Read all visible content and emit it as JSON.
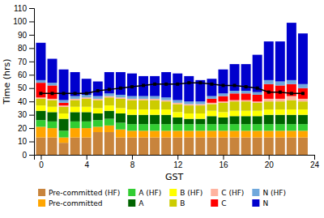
{
  "chart_data": {
    "type": "bar",
    "stacked": true,
    "grid": false,
    "legend": "bottom",
    "xlabel": "GST",
    "ylabel": "Time (hrs)",
    "x": [
      0,
      1,
      2,
      3,
      4,
      5,
      6,
      7,
      8,
      9,
      10,
      11,
      12,
      13,
      14,
      15,
      16,
      17,
      18,
      19,
      20,
      21,
      22,
      23
    ],
    "xlim": [
      -0.6,
      24.0
    ],
    "xticks": [
      0,
      4,
      8,
      12,
      16,
      20,
      24
    ],
    "ylim": [
      0,
      110
    ],
    "yticks": [
      0,
      10,
      20,
      30,
      40,
      50,
      60,
      70,
      80,
      90,
      100,
      110
    ],
    "series": [
      {
        "name": "Pre-committed (HF)",
        "color": "#c8843c",
        "values": [
          13,
          13,
          9,
          13,
          13,
          17,
          17,
          13,
          13,
          13,
          13,
          13,
          13,
          13,
          13,
          13,
          13,
          13,
          13,
          13,
          13,
          13,
          13,
          13
        ]
      },
      {
        "name": "Pre-committed",
        "color": "#ffa500",
        "values": [
          8,
          7,
          4,
          7,
          7,
          4,
          5,
          6,
          5,
          5,
          5,
          5,
          5,
          5,
          5,
          5,
          5,
          5,
          5,
          5,
          5,
          5,
          5,
          5
        ]
      },
      {
        "name": "A (HF)",
        "color": "#32cd32",
        "values": [
          5,
          5,
          5,
          5,
          5,
          5,
          5,
          5,
          5,
          5,
          5,
          5,
          5,
          5,
          5,
          5,
          5,
          5,
          5,
          5,
          5,
          5,
          5,
          5
        ]
      },
      {
        "name": "A",
        "color": "#006400",
        "values": [
          7,
          7,
          9,
          7,
          7,
          5,
          6,
          7,
          7,
          7,
          7,
          7,
          5,
          4,
          4,
          6,
          5,
          6,
          6,
          6,
          7,
          7,
          7,
          7
        ]
      },
      {
        "name": "B (HF)",
        "color": "#ffff00",
        "values": [
          4,
          4,
          4,
          4,
          4,
          4,
          4,
          4,
          4,
          4,
          4,
          4,
          4,
          4,
          4,
          4,
          4,
          4,
          4,
          4,
          4,
          4,
          4,
          4
        ]
      },
      {
        "name": "B",
        "color": "#cccc00",
        "values": [
          5,
          5,
          5,
          5,
          6,
          6,
          6,
          7,
          7,
          7,
          7,
          6,
          6,
          6,
          6,
          5,
          7,
          7,
          7,
          6,
          6,
          6,
          7,
          6
        ]
      },
      {
        "name": "C (HF)",
        "color": "#ffb3a0",
        "values": [
          1,
          1,
          1,
          1,
          1,
          1,
          1,
          1,
          1,
          1,
          1,
          1,
          1,
          1,
          1,
          1,
          1,
          1,
          1,
          1,
          2,
          2,
          3,
          2
        ]
      },
      {
        "name": "C",
        "color": "#ff0000",
        "values": [
          11,
          10,
          2,
          0,
          0,
          0,
          0,
          0,
          0,
          0,
          0,
          0,
          0,
          0,
          0,
          3,
          4,
          5,
          5,
          5,
          11,
          10,
          9,
          8
        ]
      },
      {
        "name": "N (HF)",
        "color": "#6fa8dc",
        "values": [
          2,
          2,
          2,
          2,
          2,
          2,
          2,
          2,
          2,
          2,
          2,
          2,
          2,
          2,
          2,
          2,
          2,
          2,
          2,
          2,
          3,
          3,
          3,
          3
        ]
      },
      {
        "name": "N",
        "color": "#0000cd",
        "values": [
          28,
          18,
          23,
          18,
          12,
          11,
          16,
          17,
          17,
          15,
          15,
          19,
          20,
          19,
          16,
          13,
          18,
          20,
          20,
          28,
          29,
          30,
          43,
          38
        ]
      },
      {
        "type": "line",
        "color": "black",
        "marker": "square",
        "line_style": "solid",
        "values": [
          46,
          46,
          46,
          46,
          46,
          48,
          49,
          50,
          51,
          52,
          53,
          53,
          53,
          54,
          54,
          53,
          52,
          52,
          51,
          50,
          47,
          47,
          46,
          46
        ]
      }
    ]
  }
}
